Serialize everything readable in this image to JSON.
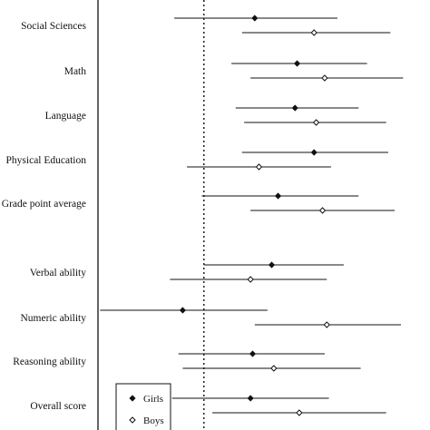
{
  "chart_data": {
    "type": "scatter",
    "subtype": "forest-plot",
    "categories": [
      "Social Sciences",
      "Math",
      "Language",
      "Physical Education",
      "Grade point average",
      "Verbal ability",
      "Numeric ability",
      "Reasoning ability",
      "Overall score"
    ],
    "reference_value": 0,
    "x_range": [
      -0.5,
      1.05
    ],
    "series": [
      {
        "name": "Girls",
        "marker": "filled-diamond",
        "points": [
          {
            "category": "Social Sciences",
            "estimate": 0.24,
            "ci_low": -0.14,
            "ci_high": 0.63
          },
          {
            "category": "Math",
            "estimate": 0.44,
            "ci_low": 0.13,
            "ci_high": 0.77
          },
          {
            "category": "Language",
            "estimate": 0.43,
            "ci_low": 0.15,
            "ci_high": 0.73
          },
          {
            "category": "Physical Education",
            "estimate": 0.52,
            "ci_low": 0.18,
            "ci_high": 0.87
          },
          {
            "category": "Grade point average",
            "estimate": 0.35,
            "ci_low": -0.01,
            "ci_high": 0.73
          },
          {
            "category": "Verbal ability",
            "estimate": 0.32,
            "ci_low": 0.0,
            "ci_high": 0.66
          },
          {
            "category": "Numeric ability",
            "estimate": -0.1,
            "ci_low": -0.49,
            "ci_high": 0.3
          },
          {
            "category": "Reasoning ability",
            "estimate": 0.23,
            "ci_low": -0.12,
            "ci_high": 0.57
          },
          {
            "category": "Overall score",
            "estimate": 0.22,
            "ci_low": -0.15,
            "ci_high": 0.59
          }
        ]
      },
      {
        "name": "Boys",
        "marker": "open-diamond",
        "points": [
          {
            "category": "Social Sciences",
            "estimate": 0.52,
            "ci_low": 0.18,
            "ci_high": 0.88
          },
          {
            "category": "Math",
            "estimate": 0.57,
            "ci_low": 0.22,
            "ci_high": 0.94
          },
          {
            "category": "Language",
            "estimate": 0.53,
            "ci_low": 0.19,
            "ci_high": 0.86
          },
          {
            "category": "Physical Education",
            "estimate": 0.26,
            "ci_low": -0.08,
            "ci_high": 0.6
          },
          {
            "category": "Grade point average",
            "estimate": 0.56,
            "ci_low": 0.22,
            "ci_high": 0.9
          },
          {
            "category": "Verbal ability",
            "estimate": 0.22,
            "ci_low": -0.16,
            "ci_high": 0.58
          },
          {
            "category": "Numeric ability",
            "estimate": 0.58,
            "ci_low": 0.24,
            "ci_high": 0.93
          },
          {
            "category": "Reasoning ability",
            "estimate": 0.33,
            "ci_low": -0.1,
            "ci_high": 0.74
          },
          {
            "category": "Overall score",
            "estimate": 0.45,
            "ci_low": 0.04,
            "ci_high": 0.86
          }
        ]
      }
    ],
    "legend": {
      "placement": "bottom-left",
      "entries": [
        "Girls",
        "Boys"
      ]
    },
    "xlabel": "",
    "ylabel": "",
    "title": "",
    "grid": false
  }
}
